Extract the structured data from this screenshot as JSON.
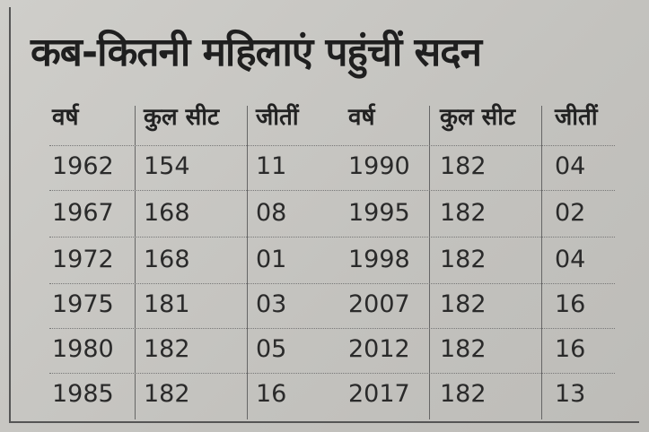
{
  "title": "कब-कितनी महिलाएं पहुंचीं सदन",
  "table": {
    "headers": [
      "वर्ष",
      "कुल सीट",
      "जीतीं",
      "वर्ष",
      "कुल सीट",
      "जीतीं"
    ],
    "rows": [
      [
        "1962",
        "154",
        "11",
        "1990",
        "182",
        "04"
      ],
      [
        "1967",
        "168",
        "08",
        "1995",
        "182",
        "02"
      ],
      [
        "1972",
        "168",
        "01",
        "1998",
        "182",
        "04"
      ],
      [
        "1975",
        "181",
        "03",
        "2007",
        "182",
        "16"
      ],
      [
        "1980",
        "182",
        "05",
        "2012",
        "182",
        "16"
      ],
      [
        "1985",
        "182",
        "16",
        "2017",
        "182",
        "13"
      ]
    ]
  }
}
